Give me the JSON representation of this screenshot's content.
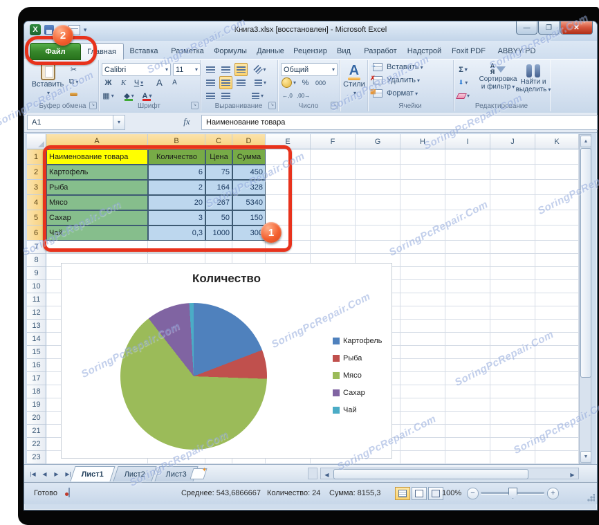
{
  "watermark": {
    "text": "SoringPcRepair.Com"
  },
  "title_bar": {
    "title": "Книга3.xlsx [восстановлен]  -  Microsoft Excel"
  },
  "tabs": {
    "file": "Файл",
    "active": "Главная",
    "items": [
      "Главная",
      "Вставка",
      "Разметка",
      "Формулы",
      "Данные",
      "Рецензир",
      "Вид",
      "Разработ",
      "Надстрой",
      "Foxit PDF",
      "ABBYY PD"
    ]
  },
  "ribbon": {
    "clipboard": {
      "paste_label": "Вставить",
      "group_label": "Буфер обмена"
    },
    "font": {
      "family": "Calibri",
      "size": "11",
      "bold": "Ж",
      "italic": "К",
      "underline": "Ч",
      "grow": "А",
      "shrink": "А",
      "color_letter": "А",
      "group_label": "Шрифт"
    },
    "alignment": {
      "group_label": "Выравнивание"
    },
    "number": {
      "format": "Общий",
      "percent": "%",
      "thousands": "000",
      "group_label": "Число"
    },
    "styles": {
      "button_label": "Стили"
    },
    "cells": {
      "insert": "Вставить",
      "delete": "Удалить",
      "format": "Формат",
      "group_label": "Ячейки"
    },
    "editing": {
      "sigma": "Σ",
      "sort_label": "Сортировка и фильтр",
      "find_label": "Найти и выделить",
      "group_label": "Редактирование"
    }
  },
  "formula_bar": {
    "name_box": "A1",
    "fx_label": "fx",
    "value": "Наименование товара"
  },
  "sheet": {
    "columns": [
      "A",
      "B",
      "C",
      "D",
      "E",
      "F",
      "G",
      "H",
      "I",
      "J",
      "K"
    ],
    "selected_columns": [
      "A",
      "B",
      "C",
      "D"
    ],
    "row_count": 23,
    "selected_rows": [
      1,
      2,
      3,
      4,
      5,
      6
    ],
    "table": {
      "headers": [
        "Наименование товара",
        "Количество",
        "Цена",
        "Сумма"
      ],
      "rows": [
        [
          "Картофель",
          "6",
          "75",
          "450"
        ],
        [
          "Рыба",
          "2",
          "164",
          "328"
        ],
        [
          "Мясо",
          "20",
          "267",
          "5340"
        ],
        [
          "Сахар",
          "3",
          "50",
          "150"
        ],
        [
          "Чай",
          "0,3",
          "1000",
          "300"
        ]
      ]
    }
  },
  "chart_data": {
    "type": "pie",
    "title": "Количество",
    "categories": [
      "Картофель",
      "Рыба",
      "Мясо",
      "Сахар",
      "Чай"
    ],
    "values": [
      6,
      2,
      20,
      3,
      0.3
    ],
    "colors": [
      "#4F81BD",
      "#C0504D",
      "#9BBB59",
      "#8064A2",
      "#4BACC6"
    ],
    "legend_position": "right",
    "start_angle_deg": 0,
    "direction": "clockwise"
  },
  "annotations": {
    "step1": "1",
    "step2": "2",
    "accent_color": "#e8321c"
  },
  "sheet_tabs": {
    "items": [
      "Лист1",
      "Лист2",
      "Лист3"
    ],
    "active": "Лист1"
  },
  "status_bar": {
    "mode": "Готово",
    "average": "Среднее: 543,6866667",
    "count": "Количество: 24",
    "sum": "Сумма: 8155,3",
    "zoom_level": "100%"
  }
}
